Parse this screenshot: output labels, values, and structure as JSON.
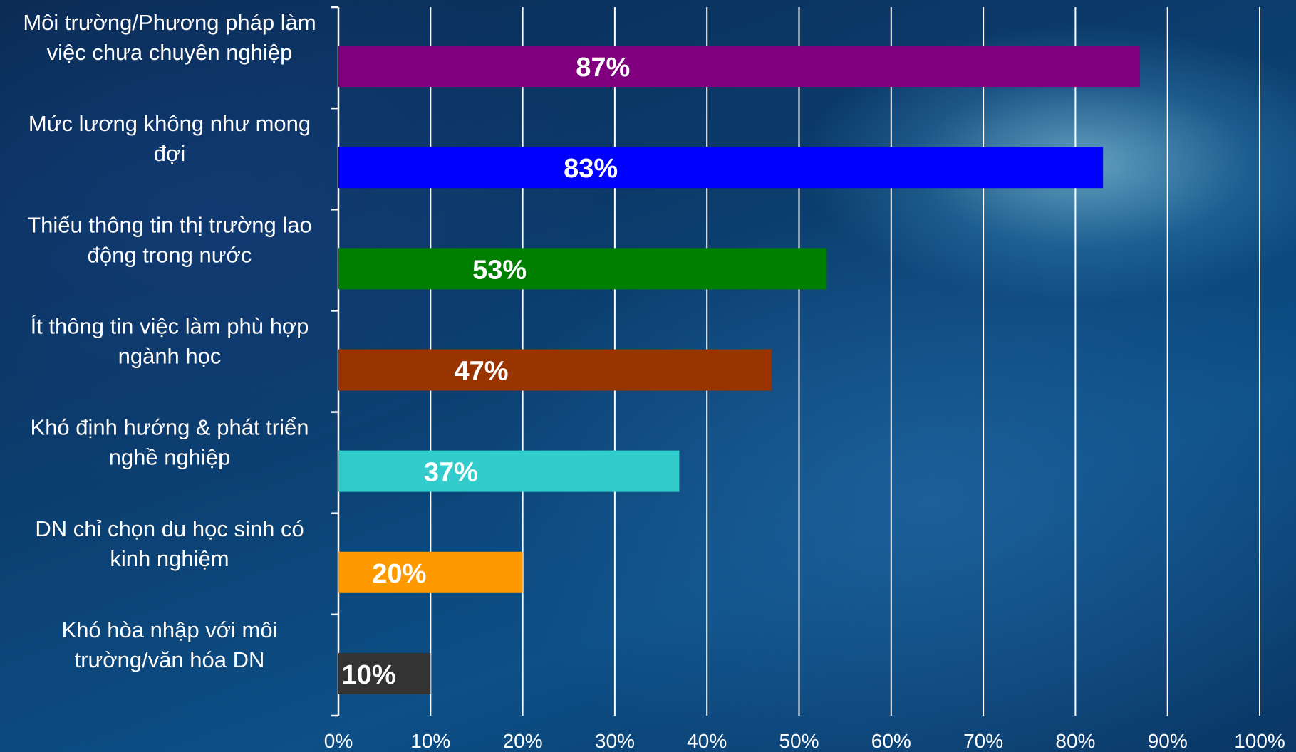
{
  "chart_data": {
    "type": "bar",
    "orientation": "horizontal",
    "categories": [
      [
        "Môi trường/Phương pháp làm",
        "việc chưa chuyên nghiệp"
      ],
      [
        "Mức lương không như mong",
        "đợi"
      ],
      [
        "Thiếu thông tin thị trường lao",
        "động trong nước"
      ],
      [
        "Ít thông tin việc làm phù hợp",
        "ngành học"
      ],
      [
        "Khó định hướng & phát triển",
        "nghề nghiệp"
      ],
      [
        "DN chỉ chọn du học sinh có",
        "kinh nghiệm"
      ],
      [
        "Khó hòa nhập với môi",
        "trường/văn hóa DN"
      ]
    ],
    "values": [
      87,
      83,
      53,
      47,
      37,
      20,
      10
    ],
    "data_labels": [
      "87%",
      "83%",
      "53%",
      "47%",
      "37%",
      "20%",
      "10%"
    ],
    "bar_colors": [
      "#800080",
      "#0000ff",
      "#008000",
      "#993300",
      "#33cccc",
      "#ff9900",
      "#333333"
    ],
    "xlim": [
      0,
      100
    ],
    "ticks": [
      0,
      10,
      20,
      30,
      40,
      50,
      60,
      70,
      80,
      90,
      100
    ],
    "tick_labels": [
      "0%",
      "10%",
      "20%",
      "30%",
      "40%",
      "50%",
      "60%",
      "70%",
      "80%",
      "90%",
      "100%"
    ],
    "grid": true,
    "legend": "none"
  }
}
